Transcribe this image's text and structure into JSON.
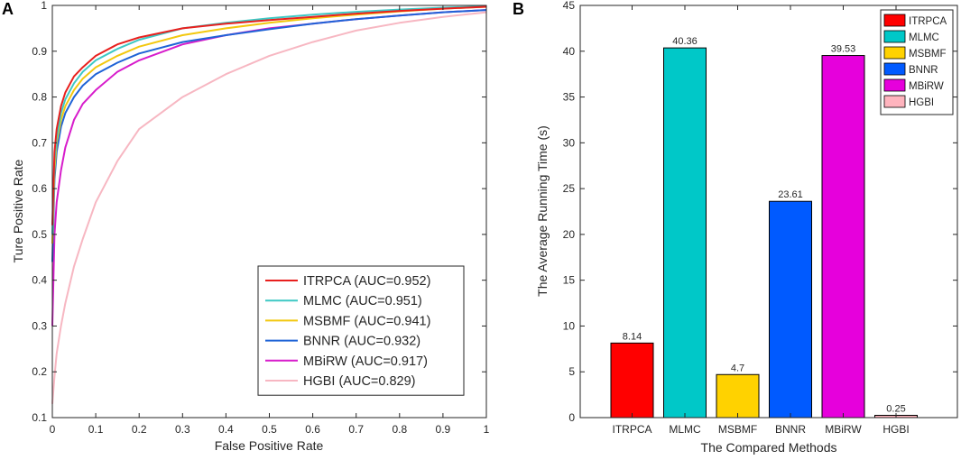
{
  "chart_data": [
    {
      "type": "line",
      "panel": "A",
      "title": "",
      "xlabel": "False Positive Rate",
      "ylabel": "Ture Positive Rate",
      "xlim": [
        0,
        1
      ],
      "ylim": [
        0.1,
        1
      ],
      "xticks": [
        "0",
        "0.1",
        "0.2",
        "0.3",
        "0.4",
        "0.5",
        "0.6",
        "0.7",
        "0.8",
        "0.9",
        "1"
      ],
      "yticks": [
        "0.1",
        "0.2",
        "0.3",
        "0.4",
        "0.5",
        "0.6",
        "0.7",
        "0.8",
        "0.9",
        "1"
      ],
      "legend_position": "bottom-right",
      "series": [
        {
          "name": "ITRPCA (AUC=0.952)",
          "color": "#e8201e",
          "x": [
            0,
            0.005,
            0.01,
            0.02,
            0.03,
            0.05,
            0.07,
            0.1,
            0.15,
            0.2,
            0.3,
            0.4,
            0.5,
            0.6,
            0.7,
            0.8,
            0.9,
            1
          ],
          "y": [
            0.52,
            0.68,
            0.73,
            0.78,
            0.81,
            0.845,
            0.865,
            0.89,
            0.915,
            0.93,
            0.95,
            0.96,
            0.968,
            0.975,
            0.982,
            0.988,
            0.993,
            0.997
          ]
        },
        {
          "name": "MLMC (AUC=0.951)",
          "color": "#3ec8c4",
          "x": [
            0,
            0.005,
            0.01,
            0.02,
            0.03,
            0.05,
            0.07,
            0.1,
            0.15,
            0.2,
            0.3,
            0.4,
            0.5,
            0.6,
            0.7,
            0.8,
            0.9,
            1
          ],
          "y": [
            0.5,
            0.66,
            0.71,
            0.765,
            0.795,
            0.83,
            0.855,
            0.88,
            0.905,
            0.925,
            0.95,
            0.962,
            0.972,
            0.98,
            0.986,
            0.991,
            0.995,
            0.998
          ]
        },
        {
          "name": "MSBMF (AUC=0.941)",
          "color": "#f2c80f",
          "x": [
            0,
            0.005,
            0.01,
            0.02,
            0.03,
            0.05,
            0.07,
            0.1,
            0.15,
            0.2,
            0.3,
            0.4,
            0.5,
            0.6,
            0.7,
            0.8,
            0.9,
            1
          ],
          "y": [
            0.48,
            0.64,
            0.7,
            0.75,
            0.78,
            0.815,
            0.84,
            0.865,
            0.89,
            0.91,
            0.935,
            0.95,
            0.962,
            0.972,
            0.98,
            0.987,
            0.993,
            0.997
          ]
        },
        {
          "name": "BNNR (AUC=0.932)",
          "color": "#1f63d6",
          "x": [
            0,
            0.005,
            0.01,
            0.02,
            0.03,
            0.05,
            0.07,
            0.1,
            0.15,
            0.2,
            0.3,
            0.4,
            0.5,
            0.6,
            0.7,
            0.8,
            0.9,
            1
          ],
          "y": [
            0.44,
            0.62,
            0.68,
            0.735,
            0.765,
            0.8,
            0.825,
            0.85,
            0.875,
            0.895,
            0.92,
            0.935,
            0.948,
            0.96,
            0.97,
            0.978,
            0.985,
            0.99
          ]
        },
        {
          "name": "MBiRW (AUC=0.917)",
          "color": "#d71ccb",
          "x": [
            0,
            0.005,
            0.01,
            0.02,
            0.03,
            0.05,
            0.07,
            0.1,
            0.15,
            0.2,
            0.3,
            0.4,
            0.5,
            0.6,
            0.7,
            0.8,
            0.9,
            1
          ],
          "y": [
            0.3,
            0.5,
            0.57,
            0.64,
            0.69,
            0.75,
            0.785,
            0.815,
            0.855,
            0.88,
            0.915,
            0.935,
            0.95,
            0.96,
            0.97,
            0.978,
            0.985,
            0.99
          ]
        },
        {
          "name": "HGBI (AUC=0.829)",
          "color": "#f7b7c2",
          "x": [
            0,
            0.005,
            0.01,
            0.02,
            0.03,
            0.05,
            0.07,
            0.1,
            0.15,
            0.2,
            0.3,
            0.4,
            0.5,
            0.6,
            0.7,
            0.8,
            0.9,
            1
          ],
          "y": [
            0.13,
            0.19,
            0.24,
            0.3,
            0.35,
            0.43,
            0.49,
            0.57,
            0.66,
            0.73,
            0.8,
            0.85,
            0.89,
            0.92,
            0.945,
            0.962,
            0.975,
            0.985
          ]
        }
      ]
    },
    {
      "type": "bar",
      "panel": "B",
      "title": "",
      "xlabel": "The Compared Methods",
      "ylabel": "The Average Running Time (s)",
      "ylim": [
        0,
        45
      ],
      "yticks": [
        "0",
        "5",
        "10",
        "15",
        "20",
        "25",
        "30",
        "35",
        "40",
        "45"
      ],
      "categories": [
        "ITRPCA",
        "MLMC",
        "MSBMF",
        "BNNR",
        "MBiRW",
        "HGBI"
      ],
      "values": [
        8.14,
        40.36,
        4.7,
        23.61,
        39.53,
        0.25
      ],
      "value_labels": [
        "8.14",
        "40.36",
        "4.7",
        "23.61",
        "39.53",
        "0.25"
      ],
      "colors": [
        "#ff0000",
        "#00c8c8",
        "#ffd200",
        "#005aff",
        "#e600dc",
        "#ffb4be"
      ],
      "legend_position": "top-right",
      "legend": [
        "ITRPCA",
        "MLMC",
        "MSBMF",
        "BNNR",
        "MBiRW",
        "HGBI"
      ]
    }
  ]
}
